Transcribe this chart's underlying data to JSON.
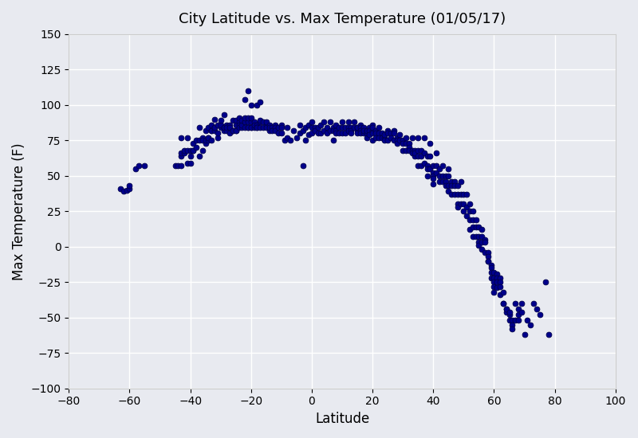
{
  "title": "City Latitude vs. Max Temperature (01/05/17)",
  "xlabel": "Latitude",
  "ylabel": "Max Temperature (F)",
  "xlim": [
    -80,
    100
  ],
  "ylim": [
    -100,
    150
  ],
  "xticks": [
    -80,
    -60,
    -40,
    -20,
    0,
    20,
    40,
    60,
    80,
    100
  ],
  "yticks": [
    -100,
    -75,
    -50,
    -25,
    0,
    25,
    50,
    75,
    100,
    125,
    150
  ],
  "marker_color": "#00008B",
  "marker_edge_color": "#000040",
  "marker_size": 25,
  "background_color": "#e8eaf0",
  "grid_color": "#ffffff",
  "scatter_data": {
    "lat": [
      -63,
      -62,
      -61,
      -60,
      -60,
      -58,
      -57,
      -55,
      -45,
      -44,
      -43,
      -43,
      -43,
      -43,
      -42,
      -42,
      -41,
      -41,
      -41,
      -40,
      -40,
      -40,
      -39,
      -39,
      -39,
      -38,
      -38,
      -37,
      -37,
      -37,
      -36,
      -36,
      -36,
      -35,
      -35,
      -35,
      -34,
      -34,
      -34,
      -34,
      -33,
      -33,
      -33,
      -33,
      -32,
      -32,
      -32,
      -32,
      -31,
      -31,
      -31,
      -30,
      -30,
      -30,
      -29,
      -29,
      -29,
      -29,
      -28,
      -28,
      -28,
      -27,
      -27,
      -27,
      -26,
      -26,
      -26,
      -25,
      -25,
      -25,
      -25,
      -24,
      -24,
      -24,
      -24,
      -23,
      -23,
      -23,
      -23,
      -22,
      -22,
      -22,
      -22,
      -22,
      -21,
      -21,
      -21,
      -21,
      -21,
      -20,
      -20,
      -20,
      -20,
      -20,
      -19,
      -19,
      -19,
      -18,
      -18,
      -18,
      -18,
      -17,
      -17,
      -17,
      -17,
      -16,
      -16,
      -15,
      -15,
      -15,
      -14,
      -14,
      -14,
      -13,
      -13,
      -12,
      -12,
      -12,
      -11,
      -11,
      -10,
      -10,
      -10,
      -9,
      -8,
      -8,
      -7,
      -6,
      -5,
      -4,
      -4,
      -3,
      -3,
      -2,
      -2,
      -1,
      -1,
      0,
      0,
      0,
      1,
      1,
      2,
      2,
      3,
      3,
      4,
      4,
      5,
      5,
      6,
      6,
      7,
      7,
      7,
      8,
      8,
      8,
      9,
      9,
      10,
      10,
      10,
      11,
      11,
      12,
      12,
      12,
      13,
      13,
      13,
      14,
      14,
      15,
      15,
      15,
      15,
      16,
      16,
      16,
      16,
      17,
      17,
      17,
      18,
      18,
      18,
      18,
      19,
      19,
      19,
      20,
      20,
      20,
      20,
      20,
      21,
      21,
      21,
      22,
      22,
      22,
      23,
      23,
      24,
      24,
      24,
      25,
      25,
      25,
      26,
      26,
      27,
      27,
      27,
      28,
      28,
      28,
      29,
      29,
      30,
      30,
      30,
      31,
      31,
      31,
      32,
      32,
      32,
      33,
      33,
      33,
      34,
      34,
      34,
      35,
      35,
      35,
      35,
      36,
      36,
      36,
      37,
      37,
      37,
      38,
      38,
      38,
      38,
      39,
      39,
      39,
      40,
      40,
      40,
      40,
      40,
      41,
      41,
      41,
      42,
      42,
      42,
      43,
      43,
      43,
      44,
      44,
      44,
      45,
      45,
      45,
      45,
      46,
      46,
      46,
      47,
      47,
      47,
      48,
      48,
      48,
      48,
      49,
      49,
      49,
      50,
      50,
      50,
      51,
      51,
      51,
      52,
      52,
      52,
      52,
      53,
      53,
      53,
      53,
      54,
      54,
      54,
      55,
      55,
      55,
      55,
      56,
      56,
      56,
      56,
      57,
      57,
      57,
      58,
      58,
      58,
      58,
      59,
      59,
      59,
      59,
      60,
      60,
      60,
      60,
      60,
      61,
      61,
      61,
      61,
      62,
      62,
      62,
      62,
      63,
      63,
      63,
      64,
      64,
      64,
      65,
      65,
      65,
      66,
      66,
      66,
      67,
      67,
      68,
      68,
      68,
      69,
      69,
      70,
      71,
      72,
      73,
      74,
      75,
      77,
      78
    ],
    "temp": [
      41,
      39,
      40,
      41,
      43,
      55,
      57,
      57,
      57,
      57,
      64,
      66,
      57,
      77,
      66,
      68,
      68,
      77,
      59,
      59,
      64,
      68,
      68,
      73,
      68,
      75,
      70,
      64,
      75,
      84,
      68,
      77,
      75,
      73,
      75,
      82,
      75,
      77,
      77,
      84,
      75,
      82,
      82,
      86,
      82,
      84,
      84,
      90,
      77,
      80,
      86,
      84,
      86,
      89,
      82,
      84,
      84,
      93,
      86,
      82,
      84,
      86,
      84,
      80,
      82,
      82,
      89,
      86,
      82,
      82,
      89,
      88,
      86,
      84,
      91,
      86,
      84,
      86,
      89,
      88,
      88,
      84,
      91,
      104,
      88,
      84,
      84,
      91,
      110,
      88,
      84,
      84,
      91,
      100,
      88,
      84,
      86,
      86,
      84,
      84,
      100,
      88,
      84,
      89,
      102,
      88,
      84,
      86,
      84,
      88,
      86,
      82,
      84,
      84,
      82,
      86,
      84,
      82,
      84,
      80,
      86,
      84,
      80,
      75,
      84,
      77,
      75,
      82,
      77,
      86,
      80,
      57,
      82,
      84,
      75,
      86,
      79,
      84,
      80,
      88,
      84,
      82,
      84,
      80,
      86,
      80,
      88,
      82,
      84,
      80,
      88,
      82,
      84,
      82,
      75,
      86,
      82,
      80,
      84,
      80,
      88,
      84,
      80,
      84,
      80,
      88,
      84,
      82,
      84,
      82,
      80,
      88,
      84,
      84,
      82,
      84,
      80,
      86,
      84,
      82,
      80,
      84,
      80,
      82,
      82,
      80,
      82,
      77,
      84,
      82,
      79,
      86,
      82,
      80,
      84,
      75,
      82,
      80,
      77,
      84,
      80,
      77,
      80,
      77,
      77,
      75,
      79,
      82,
      80,
      75,
      80,
      77,
      82,
      80,
      75,
      77,
      75,
      73,
      79,
      75,
      75,
      73,
      68,
      77,
      73,
      68,
      73,
      70,
      68,
      77,
      68,
      66,
      68,
      64,
      66,
      77,
      68,
      64,
      57,
      68,
      64,
      57,
      77,
      66,
      59,
      64,
      57,
      55,
      50,
      73,
      64,
      55,
      57,
      52,
      50,
      48,
      44,
      66,
      57,
      52,
      55,
      50,
      46,
      57,
      50,
      46,
      50,
      46,
      43,
      55,
      50,
      43,
      39,
      46,
      43,
      37,
      46,
      43,
      37,
      43,
      37,
      30,
      28,
      46,
      37,
      30,
      37,
      30,
      25,
      37,
      28,
      22,
      30,
      25,
      19,
      12,
      25,
      19,
      14,
      7,
      19,
      14,
      7,
      14,
      7,
      3,
      1,
      12,
      7,
      3,
      -2,
      5,
      3,
      -4,
      -4,
      -7,
      -10,
      -10,
      -13,
      -15,
      -18,
      -22,
      -18,
      -22,
      -25,
      -28,
      -32,
      -19,
      -22,
      -25,
      -29,
      -22,
      -25,
      -34,
      -28,
      -32,
      -40,
      -40,
      -44,
      -46,
      -44,
      -48,
      -52,
      -46,
      -52,
      -55,
      -58,
      -52,
      -40,
      -44,
      -48,
      -52,
      -40,
      -46,
      -62,
      -52,
      -55,
      -40,
      -44,
      -48,
      -25,
      -62
    ]
  }
}
